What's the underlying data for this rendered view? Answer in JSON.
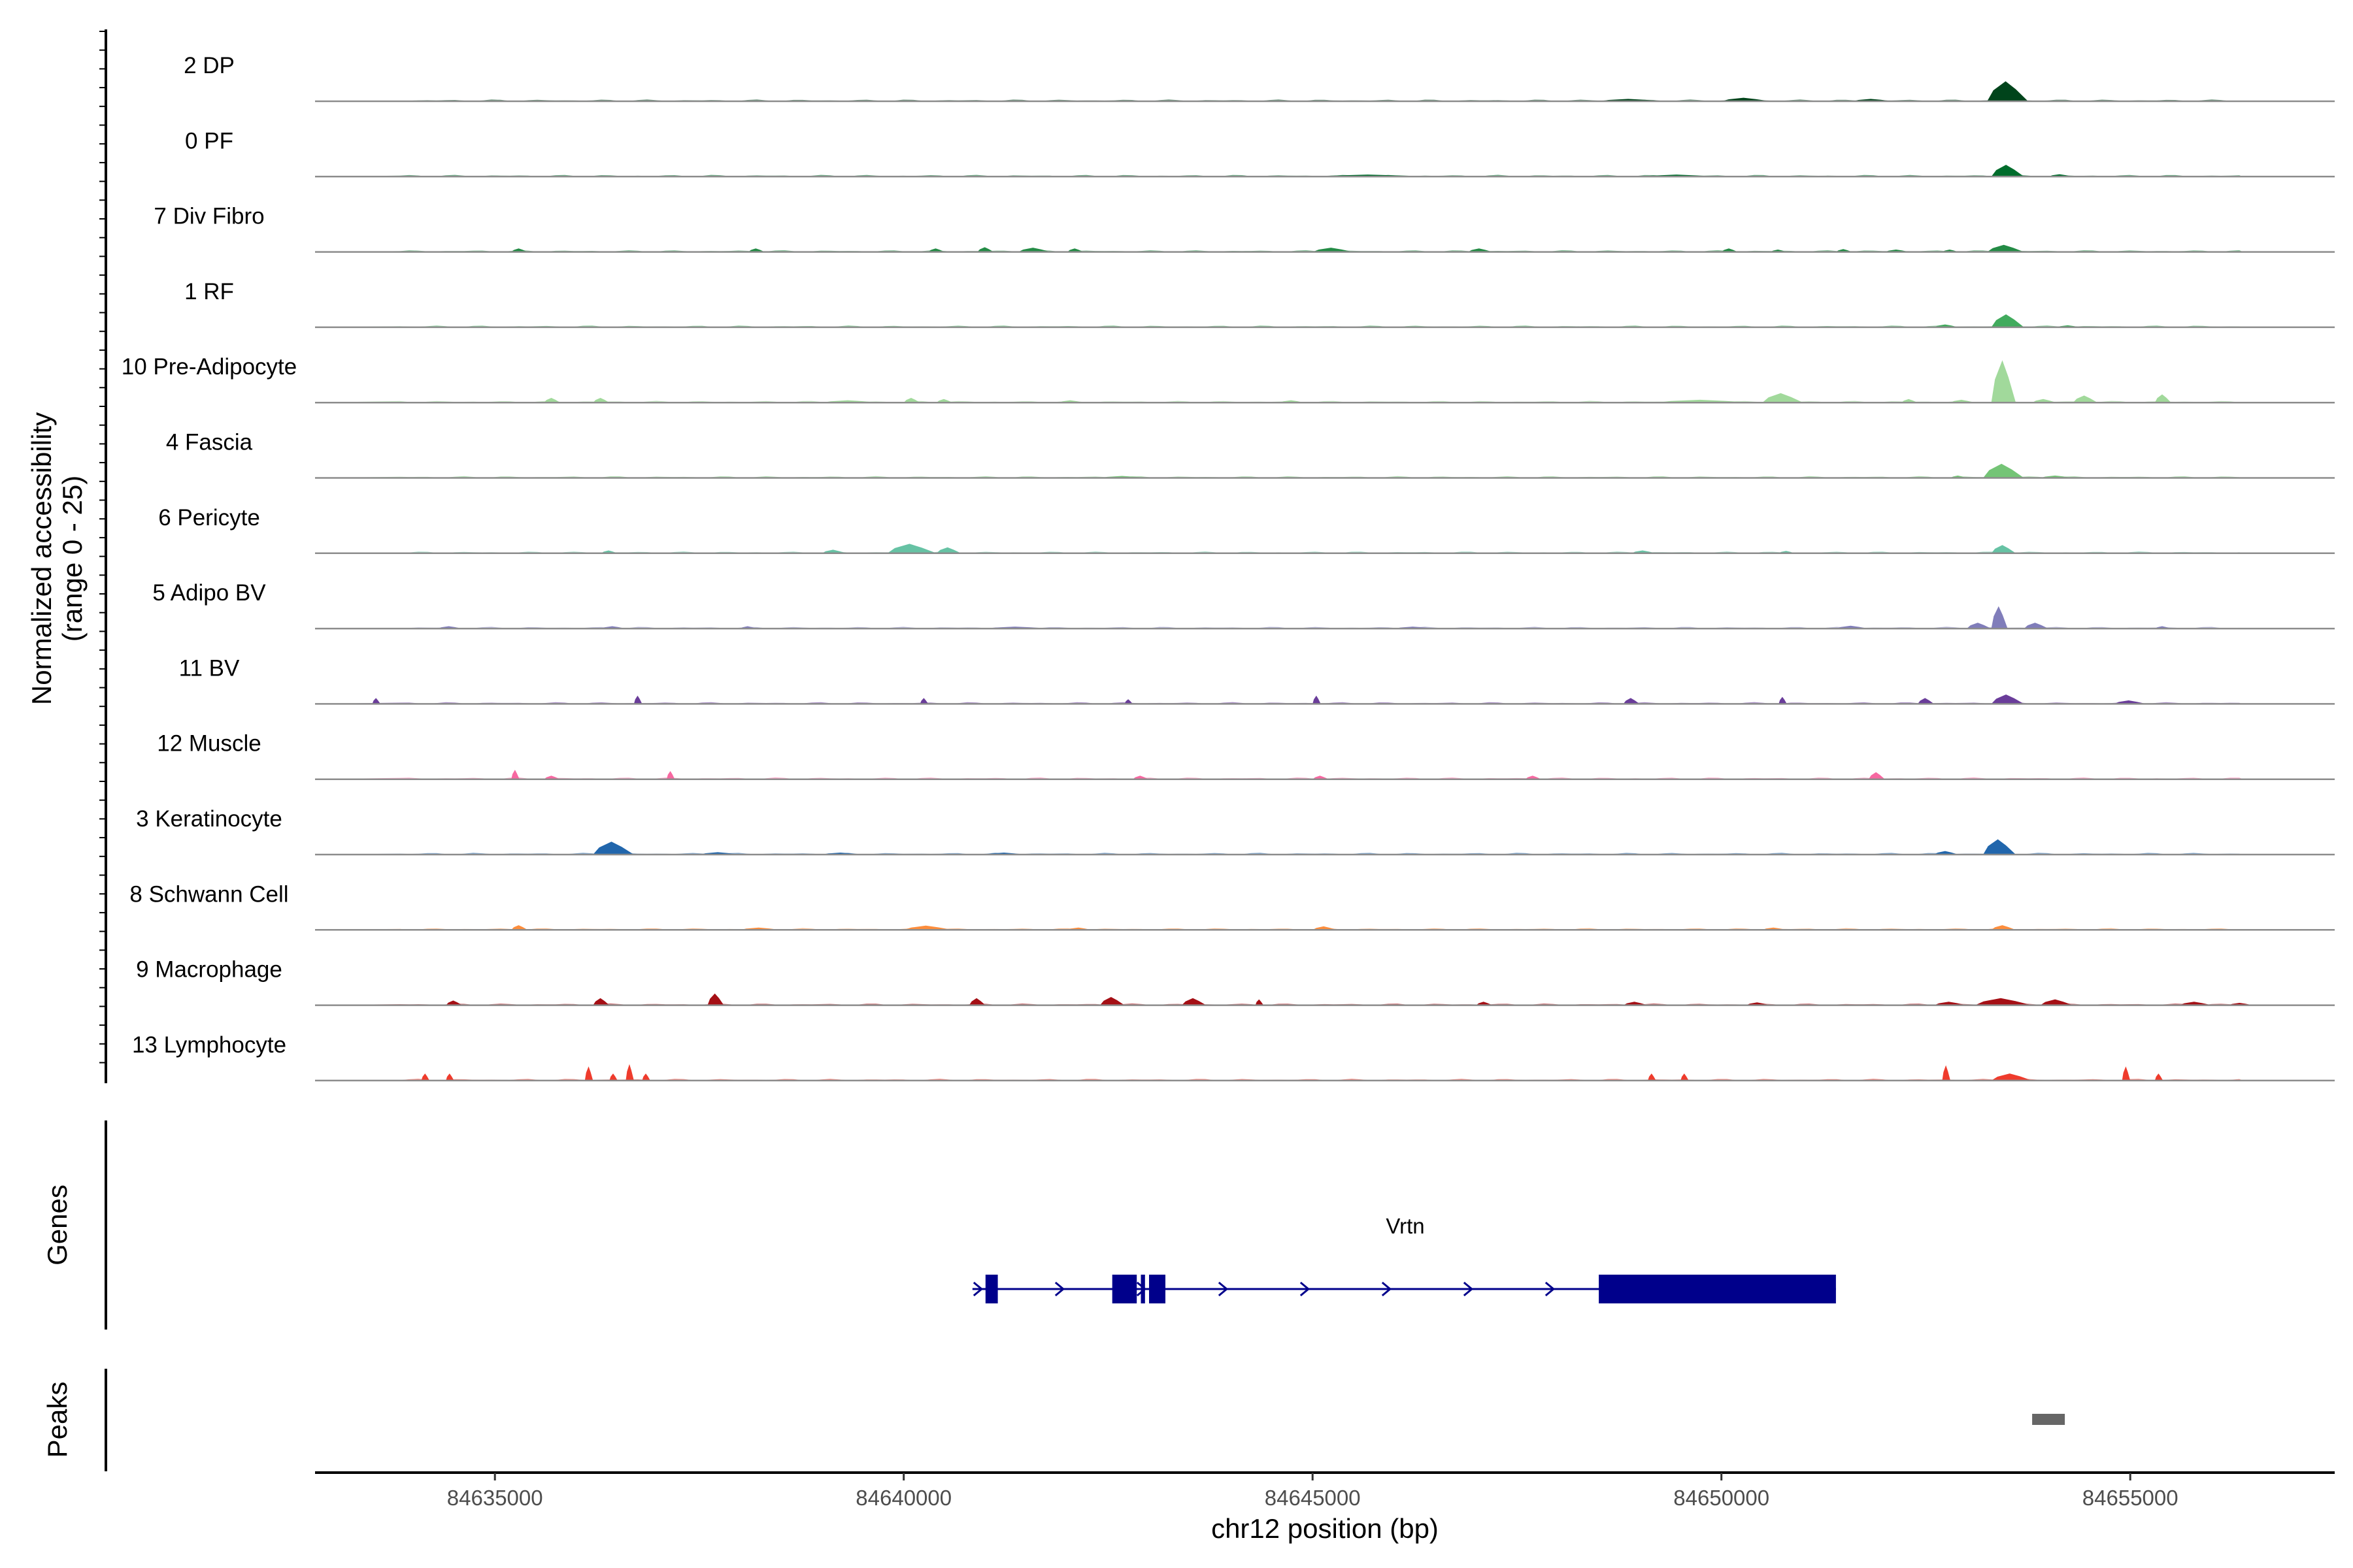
{
  "chart_data": {
    "type": "area",
    "title": "",
    "chromosome": "chr12",
    "xlim": [
      84632800,
      84657500
    ],
    "xticks": [
      84635000,
      84640000,
      84645000,
      84650000,
      84655000
    ],
    "xtick_labels": [
      "84635000",
      "84640000",
      "84645000",
      "84650000",
      "84655000"
    ],
    "xlabel": "chr12 position (bp)",
    "ylabel_line1": "Normalized accessibility",
    "ylabel_line2": "(range 0 - 25)",
    "ylim": [
      0,
      25
    ],
    "genes_label": "Genes",
    "peaks_label": "Peaks",
    "tracks": [
      {
        "name": "2 DP",
        "color": "#00441b",
        "peaks": [
          [
            84653250,
            84653750,
            8.5
          ],
          [
            84650000,
            84650600,
            1.5
          ],
          [
            84648500,
            84649300,
            1.0
          ],
          [
            84651600,
            84652100,
            1.0
          ]
        ]
      },
      {
        "name": "0 PF",
        "color": "#006d2c",
        "peaks": [
          [
            84653300,
            84653700,
            5.0
          ],
          [
            84654000,
            84654300,
            1.0
          ],
          [
            84645000,
            84646500,
            0.6
          ],
          [
            84649000,
            84650000,
            0.6
          ]
        ]
      },
      {
        "name": "7 Div Fibro",
        "color": "#238b45",
        "peaks": [
          [
            84635200,
            84635400,
            1.5
          ],
          [
            84638100,
            84638300,
            1.5
          ],
          [
            84640300,
            84640500,
            1.5
          ],
          [
            84640900,
            84641100,
            2.0
          ],
          [
            84641400,
            84641800,
            1.8
          ],
          [
            84642000,
            84642200,
            1.5
          ],
          [
            84645000,
            84645500,
            1.8
          ],
          [
            84646900,
            84647200,
            1.5
          ],
          [
            84650000,
            84650200,
            1.5
          ],
          [
            84650600,
            84650800,
            1.0
          ],
          [
            84651400,
            84651600,
            1.2
          ],
          [
            84652000,
            84652300,
            1.0
          ],
          [
            84652700,
            84652900,
            1.0
          ],
          [
            84653250,
            84653700,
            3.0
          ]
        ]
      },
      {
        "name": "1 RF",
        "color": "#41ab5d",
        "peaks": [
          [
            84653300,
            84653700,
            5.5
          ],
          [
            84652600,
            84652900,
            1.2
          ],
          [
            84654100,
            84654400,
            0.8
          ]
        ]
      },
      {
        "name": "10 Pre-Adipocyte",
        "color": "#a1d99b",
        "peaks": [
          [
            84653300,
            84653600,
            18.0
          ],
          [
            84650500,
            84651000,
            4.0
          ],
          [
            84654300,
            84654600,
            3.0
          ],
          [
            84655300,
            84655500,
            3.5
          ],
          [
            84636200,
            84636400,
            2.0
          ],
          [
            84635600,
            84635800,
            2.0
          ],
          [
            84640000,
            84640200,
            2.0
          ],
          [
            84640400,
            84640600,
            1.5
          ],
          [
            84649200,
            84650400,
            1.2
          ],
          [
            84652200,
            84652400,
            1.5
          ],
          [
            84652800,
            84653100,
            1.2
          ],
          [
            84653800,
            84654100,
            1.5
          ],
          [
            84639000,
            84639700,
            1.0
          ],
          [
            84641900,
            84642200,
            1.0
          ],
          [
            84644600,
            84644900,
            1.0
          ]
        ]
      },
      {
        "name": "4 Fascia",
        "color": "#74c476",
        "peaks": [
          [
            84653200,
            84653700,
            6.0
          ],
          [
            84652800,
            84653000,
            1.0
          ],
          [
            84653900,
            84654300,
            1.0
          ],
          [
            84642400,
            84643000,
            0.8
          ]
        ]
      },
      {
        "name": "6 Pericyte",
        "color": "#66c2a4",
        "peaks": [
          [
            84639800,
            84640400,
            4.0
          ],
          [
            84640400,
            84640700,
            2.5
          ],
          [
            84639000,
            84639300,
            1.5
          ],
          [
            84636300,
            84636500,
            1.2
          ],
          [
            84653300,
            84653600,
            3.5
          ],
          [
            84648900,
            84649200,
            1.2
          ],
          [
            84650700,
            84650900,
            1.0
          ]
        ]
      },
      {
        "name": "5 Adipo BV",
        "color": "#807dba",
        "peaks": [
          [
            84653300,
            84653500,
            9.5
          ],
          [
            84653000,
            84653300,
            2.5
          ],
          [
            84653700,
            84654000,
            2.5
          ],
          [
            84651400,
            84651800,
            1.2
          ],
          [
            84655300,
            84655500,
            1.0
          ],
          [
            84634300,
            84634600,
            1.0
          ],
          [
            84636300,
            84636600,
            1.0
          ],
          [
            84638000,
            84638200,
            1.0
          ],
          [
            84641000,
            84641800,
            0.8
          ],
          [
            84646000,
            84646500,
            0.8
          ]
        ]
      },
      {
        "name": "11 BV",
        "color": "#6a3d9a",
        "peaks": [
          [
            84633500,
            84633600,
            2.5
          ],
          [
            84636700,
            84636800,
            3.5
          ],
          [
            84640200,
            84640300,
            2.5
          ],
          [
            84642700,
            84642800,
            2.0
          ],
          [
            84645000,
            84645100,
            3.5
          ],
          [
            84648800,
            84649000,
            2.5
          ],
          [
            84650700,
            84650800,
            3.0
          ],
          [
            84652400,
            84652600,
            2.5
          ],
          [
            84653300,
            84653700,
            4.0
          ],
          [
            84654800,
            84655200,
            1.5
          ]
        ]
      },
      {
        "name": "12 Muscle",
        "color": "#f768a1",
        "peaks": [
          [
            84635200,
            84635300,
            4.0
          ],
          [
            84637100,
            84637200,
            3.5
          ],
          [
            84642800,
            84643000,
            1.5
          ],
          [
            84645000,
            84645200,
            1.5
          ],
          [
            84647600,
            84647800,
            1.5
          ],
          [
            84651800,
            84652000,
            3.0
          ],
          [
            84635600,
            84635800,
            1.5
          ]
        ]
      },
      {
        "name": "3 Keratinocyte",
        "color": "#2166ac",
        "peaks": [
          [
            84636200,
            84636700,
            5.5
          ],
          [
            84653200,
            84653600,
            6.5
          ],
          [
            84652600,
            84652900,
            1.5
          ],
          [
            84637500,
            84638000,
            1.0
          ],
          [
            84639000,
            84639500,
            0.8
          ],
          [
            84641000,
            84641500,
            0.8
          ]
        ]
      },
      {
        "name": "8 Schwann Cell",
        "color": "#fd8d3c",
        "peaks": [
          [
            84635200,
            84635400,
            2.0
          ],
          [
            84640000,
            84640600,
            1.8
          ],
          [
            84653300,
            84653600,
            2.0
          ],
          [
            84645000,
            84645300,
            1.5
          ],
          [
            84642000,
            84642300,
            1.0
          ],
          [
            84638000,
            84638500,
            1.0
          ],
          [
            84650500,
            84650800,
            1.0
          ]
        ]
      },
      {
        "name": "9 Macrophage",
        "color": "#a50f15",
        "peaks": [
          [
            84637600,
            84637800,
            5.0
          ],
          [
            84636200,
            84636400,
            3.0
          ],
          [
            84634400,
            84634600,
            2.0
          ],
          [
            84640800,
            84641000,
            3.0
          ],
          [
            84642400,
            84642700,
            3.5
          ],
          [
            84643400,
            84643700,
            3.0
          ],
          [
            84644300,
            84644400,
            2.5
          ],
          [
            84653100,
            84653800,
            3.0
          ],
          [
            84653900,
            84654300,
            2.5
          ],
          [
            84647000,
            84647200,
            1.5
          ],
          [
            84648800,
            84649100,
            1.5
          ],
          [
            84650300,
            84650600,
            1.2
          ],
          [
            84652600,
            84653000,
            1.5
          ],
          [
            84655600,
            84656000,
            1.5
          ],
          [
            84656200,
            84656500,
            1.0
          ]
        ]
      },
      {
        "name": "13 Lymphocyte",
        "color": "#ef3b2c",
        "peaks": [
          [
            84636600,
            84636700,
            7.0
          ],
          [
            84636100,
            84636200,
            6.0
          ],
          [
            84634100,
            84634200,
            3.0
          ],
          [
            84634400,
            84634500,
            3.0
          ],
          [
            84636400,
            84636500,
            3.0
          ],
          [
            84636800,
            84636900,
            3.0
          ],
          [
            84649100,
            84649200,
            3.0
          ],
          [
            84649500,
            84649600,
            3.0
          ],
          [
            84652700,
            84652800,
            6.5
          ],
          [
            84653300,
            84653800,
            3.0
          ],
          [
            84654900,
            84655000,
            6.0
          ],
          [
            84655300,
            84655400,
            3.0
          ]
        ]
      }
    ],
    "gene": {
      "name": "Vrtn",
      "color": "#00008b",
      "strand": "+",
      "start": 84641000,
      "end": 84651400,
      "exons": [
        [
          84641000,
          84641150
        ],
        [
          84642550,
          84642850
        ],
        [
          84642900,
          84642950
        ],
        [
          84643000,
          84643200
        ],
        [
          84648500,
          84651400
        ]
      ]
    },
    "peaks_track": [
      {
        "start": 84653800,
        "end": 84654200,
        "color": "#666666"
      }
    ]
  }
}
